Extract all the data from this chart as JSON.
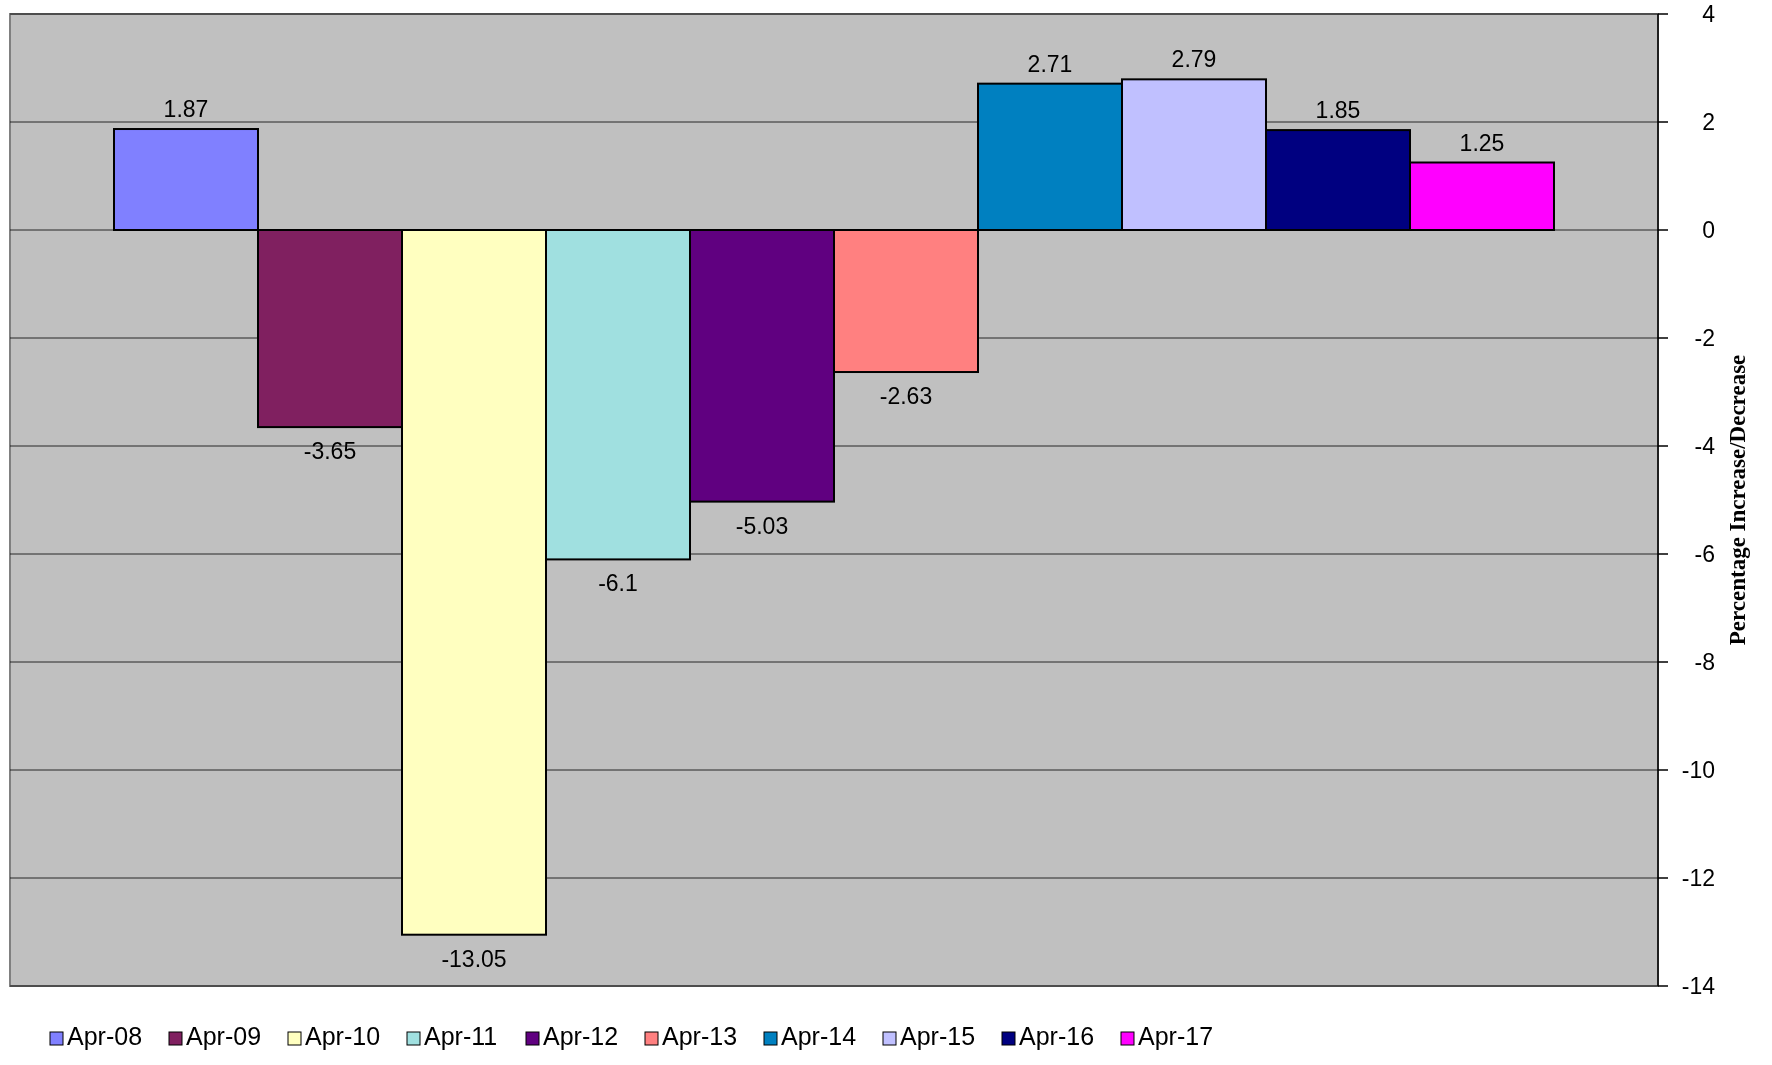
{
  "chart_data": {
    "type": "bar",
    "ylabel": "Percentage Increase/Decrease",
    "categories": [
      null
    ],
    "series": [
      {
        "name": "Apr-08",
        "color": "#8080ff",
        "values": [
          1.87
        ]
      },
      {
        "name": "Apr-09",
        "color": "#802060",
        "values": [
          -3.65
        ]
      },
      {
        "name": "Apr-10",
        "color": "#ffffc0",
        "values": [
          -13.05
        ]
      },
      {
        "name": "Apr-11",
        "color": "#a0e0e0",
        "values": [
          -6.1
        ]
      },
      {
        "name": "Apr-12",
        "color": "#600080",
        "values": [
          -5.03
        ]
      },
      {
        "name": "Apr-13",
        "color": "#ff8080",
        "values": [
          -2.63
        ]
      },
      {
        "name": "Apr-14",
        "color": "#0080c0",
        "values": [
          2.71
        ]
      },
      {
        "name": "Apr-15",
        "color": "#c0c0ff",
        "values": [
          2.79
        ]
      },
      {
        "name": "Apr-16",
        "color": "#000080",
        "values": [
          1.85
        ]
      },
      {
        "name": "Apr-17",
        "color": "#ff00ff",
        "values": [
          1.25
        ]
      }
    ],
    "ylim": [
      -14,
      4
    ],
    "yticks": [
      -14,
      -12,
      -10,
      -8,
      -6,
      -4,
      -2,
      0,
      2,
      4
    ],
    "grid": "y",
    "legend": "bottom",
    "data_labels": true
  }
}
